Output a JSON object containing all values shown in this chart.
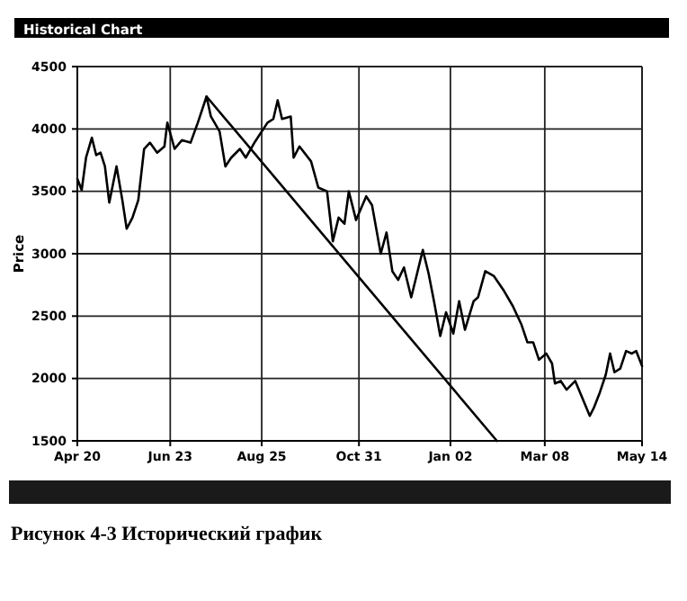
{
  "chart_data": {
    "type": "line",
    "title": "Historical Chart",
    "ylabel": "Price",
    "annotations": [
      "Рисунок 4-3 Исторический график"
    ],
    "xlim": [
      "2000-04-20",
      "2001-05-14"
    ],
    "xticks": [
      {
        "value": "2000-04-20",
        "label": "Apr 20"
      },
      {
        "value": "2000-06-23",
        "label": "Jun 23"
      },
      {
        "value": "2000-08-25",
        "label": "Aug 25"
      },
      {
        "value": "2000-10-31",
        "label": "Oct 31"
      },
      {
        "value": "2001-01-02",
        "label": "Jan 02"
      },
      {
        "value": "2001-03-08",
        "label": "Mar 08"
      },
      {
        "value": "2001-05-14",
        "label": "May 14"
      }
    ],
    "ylim": [
      1500,
      4500
    ],
    "yticks": [
      1500,
      2000,
      2500,
      3000,
      3500,
      4000,
      4500
    ],
    "grid": true,
    "marker": "none",
    "line_style": "solid",
    "series": [
      {
        "color": "#000000",
        "x": [
          "2000-04-20",
          "2000-04-23",
          "2000-04-26",
          "2000-04-30",
          "2000-05-03",
          "2000-05-06",
          "2000-05-09",
          "2000-05-12",
          "2000-05-17",
          "2000-05-21",
          "2000-05-24",
          "2000-05-28",
          "2000-06-01",
          "2000-06-05",
          "2000-06-09",
          "2000-06-14",
          "2000-06-19",
          "2000-06-21",
          "2000-06-26",
          "2000-07-01",
          "2000-07-07",
          "2000-07-12",
          "2000-07-18",
          "2000-07-21",
          "2000-07-27",
          "2000-07-31",
          "2000-08-04",
          "2000-08-10",
          "2000-08-14",
          "2000-08-20",
          "2000-08-29",
          "2000-09-02",
          "2000-09-05",
          "2000-09-08",
          "2000-09-14",
          "2000-09-16",
          "2000-09-20",
          "2000-09-28",
          "2000-10-03",
          "2000-10-09",
          "2000-10-13",
          "2000-10-17",
          "2000-10-21",
          "2000-10-24",
          "2000-10-29",
          "2000-11-05",
          "2000-11-09",
          "2000-11-15",
          "2000-11-19",
          "2000-11-23",
          "2000-11-27",
          "2000-12-01",
          "2000-12-06",
          "2000-12-10",
          "2000-12-14",
          "2000-12-18",
          "2000-12-22",
          "2000-12-26",
          "2000-12-30",
          "2001-01-04",
          "2001-01-08",
          "2001-01-12",
          "2001-01-18",
          "2001-01-21",
          "2001-01-26",
          "2001-02-01",
          "2001-02-08",
          "2001-02-14",
          "2001-02-20",
          "2001-02-24",
          "2001-02-28",
          "2001-03-04",
          "2001-03-09",
          "2001-03-13",
          "2001-03-15",
          "2001-03-19",
          "2001-03-23",
          "2001-03-29",
          "2001-04-08",
          "2001-04-11",
          "2001-04-15",
          "2001-04-19",
          "2001-04-22",
          "2001-04-25",
          "2001-04-29",
          "2001-05-03",
          "2001-05-07",
          "2001-05-10",
          "2001-05-14"
        ],
        "values": [
          3600,
          3510,
          3770,
          3930,
          3790,
          3810,
          3700,
          3410,
          3700,
          3430,
          3200,
          3290,
          3430,
          3840,
          3890,
          3810,
          3860,
          4050,
          3840,
          3910,
          3890,
          4050,
          4260,
          4100,
          3980,
          3700,
          3770,
          3840,
          3770,
          3890,
          4050,
          4080,
          4230,
          4080,
          4100,
          3770,
          3860,
          3740,
          3530,
          3500,
          3100,
          3290,
          3240,
          3500,
          3270,
          3460,
          3390,
          3000,
          3170,
          2860,
          2790,
          2890,
          2650,
          2840,
          3030,
          2840,
          2600,
          2340,
          2530,
          2360,
          2620,
          2390,
          2620,
          2650,
          2860,
          2820,
          2700,
          2580,
          2430,
          2290,
          2290,
          2150,
          2200,
          2120,
          1960,
          1980,
          1910,
          1980,
          1700,
          1770,
          1890,
          2030,
          2200,
          2050,
          2080,
          2220,
          2200,
          2220,
          2100
        ]
      },
      {
        "color": "#000000",
        "x": [
          "2000-07-18",
          "2001-02-03"
        ],
        "values": [
          4260,
          1500
        ]
      }
    ]
  }
}
